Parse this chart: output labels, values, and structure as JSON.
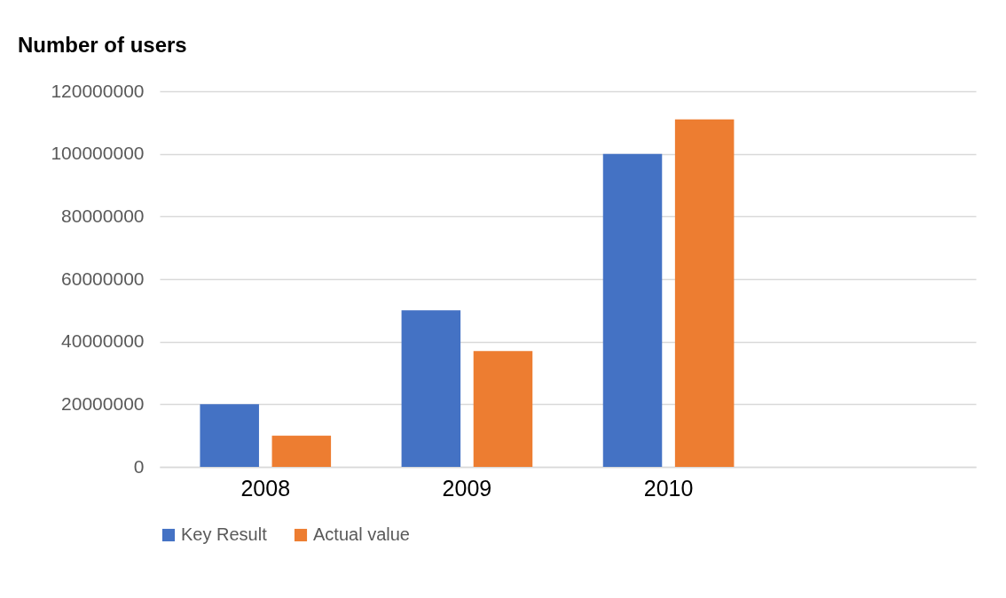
{
  "chart_data": {
    "type": "bar",
    "title": "Number of users",
    "categories": [
      "2008",
      "2009",
      "2010",
      null
    ],
    "series": [
      {
        "name": "Key Result",
        "color": "#4472c4",
        "values": [
          20000000,
          50000000,
          100000000,
          null
        ]
      },
      {
        "name": "Actual value",
        "color": "#ed7d31",
        "values": [
          10000000,
          37000000,
          111000000,
          null
        ]
      }
    ],
    "ylim": [
      0,
      120000000
    ],
    "yticks": [
      0,
      20000000,
      40000000,
      60000000,
      80000000,
      100000000,
      120000000
    ],
    "grid": "y",
    "legend": "bottom"
  }
}
